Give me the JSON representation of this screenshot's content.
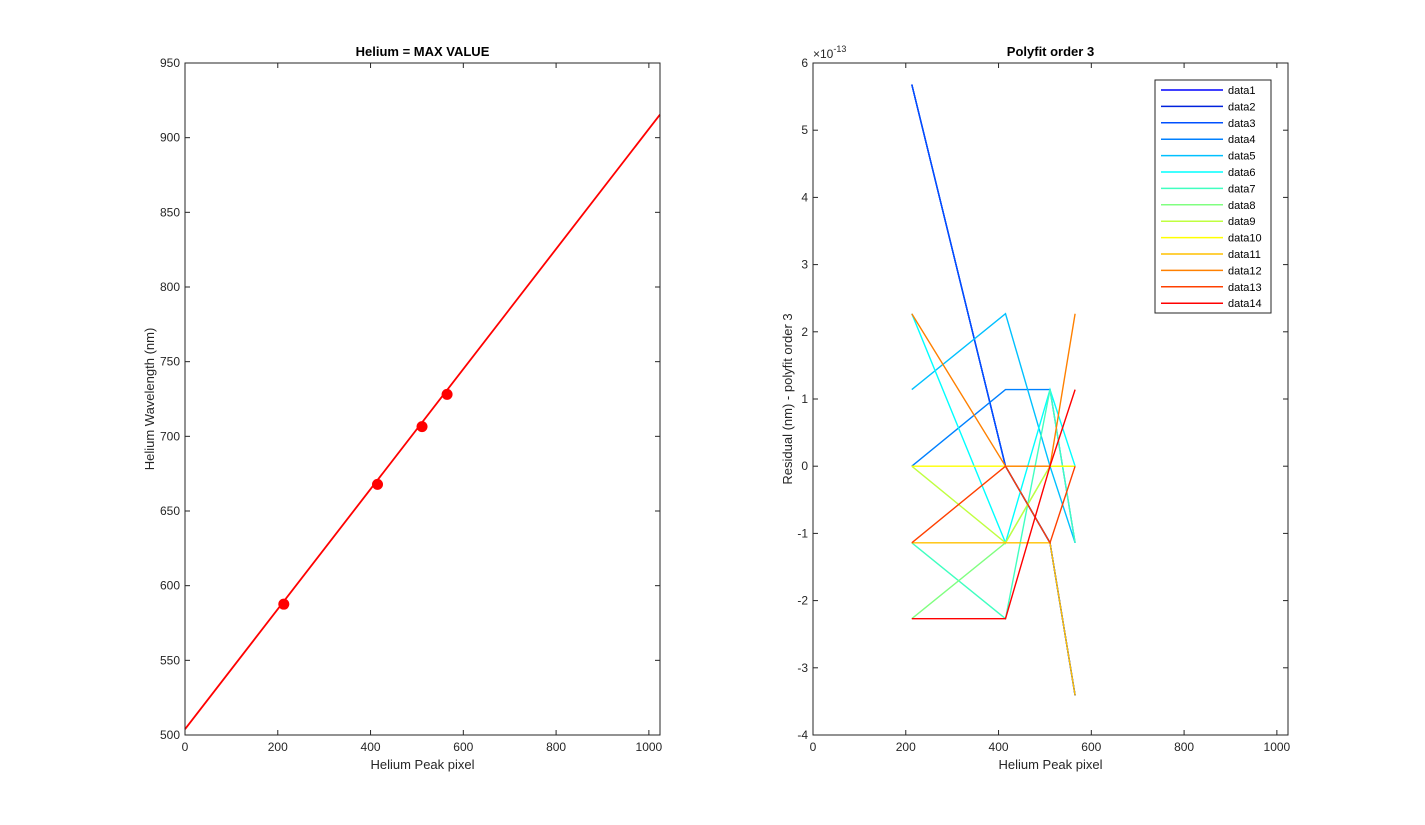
{
  "chart_data": [
    {
      "type": "line",
      "title": "Helium = MAX VALUE",
      "xlabel": "Helium Peak pixel",
      "ylabel": "Helium Wavelength (nm)",
      "xlim": [
        0,
        1024
      ],
      "ylim": [
        500,
        950
      ],
      "xticks": [
        0,
        200,
        400,
        600,
        800,
        1000
      ],
      "yticks": [
        500,
        550,
        600,
        650,
        700,
        750,
        800,
        850,
        900,
        950
      ],
      "grid": false,
      "series": [
        {
          "kind": "line",
          "color": "#ff0000",
          "x": [
            0,
            1024
          ],
          "y": [
            503.9,
            915.5
          ]
        },
        {
          "kind": "markers",
          "color": "#ff0000",
          "x": [
            213,
            415,
            511,
            565
          ],
          "y": [
            587.6,
            667.8,
            706.5,
            728.1
          ]
        }
      ]
    },
    {
      "type": "line",
      "title": "Polyfit order 3",
      "xlabel": "Helium Peak pixel",
      "ylabel": "Residual (nm) - polyfit order 3",
      "exponent_label": "×10",
      "exponent_power": "-13",
      "xlim": [
        0,
        1024
      ],
      "ylim": [
        -4,
        6
      ],
      "xticks": [
        0,
        200,
        400,
        600,
        800,
        1000
      ],
      "yticks": [
        -4,
        -3,
        -2,
        -1,
        0,
        1,
        2,
        3,
        4,
        5,
        6
      ],
      "grid": false,
      "legend_position": "top-right",
      "x": [
        213,
        415,
        511,
        565
      ],
      "series": [
        {
          "name": "data1",
          "color": "#0000ff",
          "values": [
            5.68,
            0,
            -1.14,
            -3.41
          ]
        },
        {
          "name": "data2",
          "color": "#0022dd",
          "values": [
            5.68,
            0,
            -1.14,
            -3.41
          ]
        },
        {
          "name": "data3",
          "color": "#0050ff",
          "values": [
            5.68,
            0,
            -1.14,
            -3.41
          ]
        },
        {
          "name": "data4",
          "color": "#0080ff",
          "values": [
            0,
            1.14,
            1.14,
            -1.14
          ]
        },
        {
          "name": "data5",
          "color": "#00c0ff",
          "values": [
            1.14,
            2.27,
            0,
            -1.14
          ]
        },
        {
          "name": "data6",
          "color": "#00ffff",
          "values": [
            2.27,
            -1.14,
            1.14,
            0
          ]
        },
        {
          "name": "data7",
          "color": "#40ffc0",
          "values": [
            -1.14,
            -2.27,
            1.14,
            -1.14
          ]
        },
        {
          "name": "data8",
          "color": "#80ff80",
          "values": [
            -2.27,
            -1.14,
            0,
            0
          ]
        },
        {
          "name": "data9",
          "color": "#c0ff40",
          "values": [
            0,
            -1.14,
            0,
            0
          ]
        },
        {
          "name": "data10",
          "color": "#ffff00",
          "values": [
            0,
            0,
            0,
            0
          ]
        },
        {
          "name": "data11",
          "color": "#ffc000",
          "values": [
            -1.14,
            -1.14,
            -1.14,
            -3.41
          ]
        },
        {
          "name": "data12",
          "color": "#ff8000",
          "values": [
            2.27,
            0,
            0,
            2.27
          ]
        },
        {
          "name": "data13",
          "color": "#ff4000",
          "values": [
            -1.14,
            0,
            -1.14,
            0
          ]
        },
        {
          "name": "data14",
          "color": "#ff0000",
          "values": [
            -2.27,
            -2.27,
            0,
            1.14
          ]
        }
      ]
    }
  ]
}
